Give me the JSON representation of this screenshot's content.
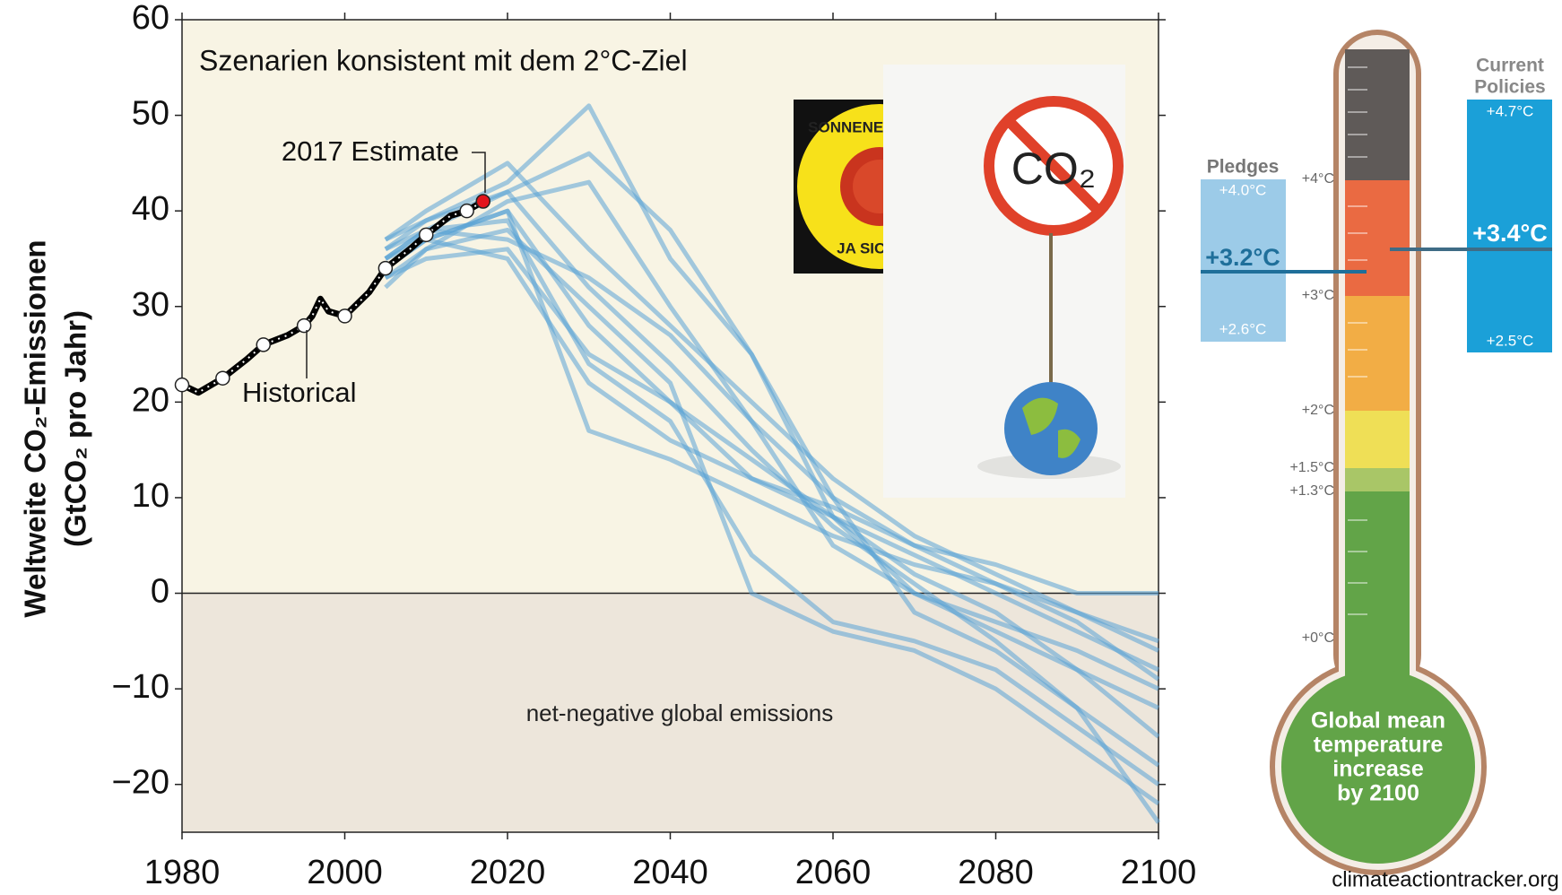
{
  "chart_data": {
    "type": "line",
    "title": "Szenarien konsistent mit dem 2°C-Ziel",
    "y_label": [
      "Weltweite CO₂-Emissionen",
      "(GtCO₂ pro Jahr)"
    ],
    "xlim": [
      1980,
      2100
    ],
    "xticks": [
      1980,
      2000,
      2020,
      2040,
      2060,
      2080,
      2100
    ],
    "ylim": [
      -25,
      60
    ],
    "yticks": [
      {
        "value": -20,
        "label": "−20"
      },
      {
        "value": -10,
        "label": "−10"
      },
      0,
      10,
      20,
      30,
      40,
      50,
      60
    ],
    "annotations": {
      "estimate": "2017 Estimate",
      "historical": "Historical",
      "negative": "net-negative global emissions"
    },
    "highlight_color": "#e3141b",
    "series": [
      {
        "color": "#000000",
        "x": [
          1980,
          1982,
          1985,
          1988,
          1990,
          1993,
          1995,
          1996,
          1997,
          1998,
          2000,
          2003,
          2005,
          2008,
          2010,
          2013,
          2015,
          2017
        ],
        "values": [
          21.8,
          21,
          22.5,
          24.5,
          26,
          27,
          28,
          29,
          30.8,
          29.5,
          29,
          31.5,
          34,
          36,
          37.5,
          39.5,
          40,
          41
        ]
      },
      {
        "color": "#5aa2d6",
        "x": [
          2005,
          2010,
          2020,
          2030,
          2040,
          2050,
          2060,
          2070,
          2080,
          2090,
          2100
        ],
        "values": [
          37,
          40,
          45,
          36,
          28,
          20,
          12,
          6,
          2,
          -2,
          -5
        ]
      },
      {
        "color": "#5aa2d6",
        "x": [
          2005,
          2010,
          2020,
          2030,
          2040,
          2050,
          2060,
          2070,
          2080,
          2090,
          2100
        ],
        "values": [
          36,
          39,
          43,
          51,
          35,
          25,
          10,
          -2,
          -6,
          -12,
          -24
        ]
      },
      {
        "color": "#5aa2d6",
        "x": [
          2005,
          2010,
          2020,
          2030,
          2040,
          2050,
          2060,
          2070,
          2080,
          2090,
          2100
        ],
        "values": [
          35,
          38,
          42,
          46,
          38,
          25,
          8,
          0,
          -4,
          -8,
          -12
        ]
      },
      {
        "color": "#5aa2d6",
        "x": [
          2005,
          2010,
          2020,
          2030,
          2040,
          2050,
          2060,
          2070,
          2080,
          2090,
          2100
        ],
        "values": [
          34,
          37,
          40,
          17,
          14,
          10,
          6,
          3,
          1,
          -3,
          -9
        ]
      },
      {
        "color": "#5aa2d6",
        "x": [
          2005,
          2010,
          2020,
          2030,
          2040,
          2050,
          2060,
          2070,
          2080,
          2090,
          2100
        ],
        "values": [
          33,
          36,
          41,
          43,
          30,
          18,
          5,
          0,
          -3,
          -6,
          -10
        ]
      },
      {
        "color": "#5aa2d6",
        "x": [
          2005,
          2010,
          2020,
          2030,
          2040,
          2050,
          2060,
          2070,
          2080,
          2090,
          2100
        ],
        "values": [
          35,
          38,
          39,
          24,
          18,
          4,
          -3,
          -5,
          -8,
          -14,
          -20
        ]
      },
      {
        "color": "#5aa2d6",
        "x": [
          2005,
          2010,
          2020,
          2030,
          2040,
          2050,
          2060,
          2070,
          2080,
          2090,
          2100
        ],
        "values": [
          32,
          36,
          38,
          30,
          22,
          0,
          -4,
          -6,
          -10,
          -16,
          -22
        ]
      },
      {
        "color": "#5aa2d6",
        "x": [
          2005,
          2010,
          2020,
          2030,
          2040,
          2050,
          2060,
          2070,
          2080,
          2090,
          2100
        ],
        "values": [
          34,
          37,
          40,
          28,
          20,
          12,
          8,
          4,
          0,
          -4,
          -8
        ]
      },
      {
        "color": "#5aa2d6",
        "x": [
          2005,
          2010,
          2020,
          2030,
          2040,
          2050,
          2060,
          2070,
          2080,
          2090,
          2100
        ],
        "values": [
          36,
          38,
          37,
          33,
          27,
          18,
          10,
          5,
          1,
          -2,
          -6
        ]
      },
      {
        "color": "#5aa2d6",
        "x": [
          2005,
          2010,
          2020,
          2030,
          2040,
          2050,
          2060,
          2070,
          2080,
          2090,
          2100
        ],
        "values": [
          33,
          35,
          36,
          25,
          20,
          14,
          8,
          2,
          -2,
          -8,
          -15
        ]
      },
      {
        "color": "#5aa2d6",
        "x": [
          2005,
          2010,
          2020,
          2030,
          2040,
          2050,
          2060,
          2070,
          2080,
          2090,
          2100
        ],
        "values": [
          37,
          39,
          42,
          32,
          24,
          15,
          7,
          1,
          -5,
          -12,
          -18
        ]
      },
      {
        "color": "#5aa2d6",
        "x": [
          2005,
          2010,
          2020,
          2030,
          2040,
          2050,
          2060,
          2070,
          2080,
          2090,
          2100
        ],
        "values": [
          35,
          37,
          35,
          22,
          16,
          12,
          9,
          5,
          3,
          0,
          0
        ]
      }
    ]
  },
  "images": {
    "sticker_top": "SONNENENERGIE?",
    "sticker_bottom": "JA SICHER!",
    "sign": "CO₂"
  },
  "thermometer": {
    "scale": [
      "+4°C",
      "+3°C",
      "+2°C",
      "+1.5°C",
      "+1.3°C",
      "+0°C"
    ],
    "bulb": [
      "Global mean",
      "temperature",
      "increase",
      "by 2100"
    ],
    "pledges": {
      "title": "Pledges",
      "high": "+4.0°C",
      "mid": "+3.2°C",
      "low": "+2.6°C"
    },
    "current": {
      "title": [
        "Current",
        "Policies"
      ],
      "high": "+4.7°C",
      "mid": "+3.4°C",
      "low": "+2.5°C"
    }
  },
  "source": "climateactiontracker.org"
}
